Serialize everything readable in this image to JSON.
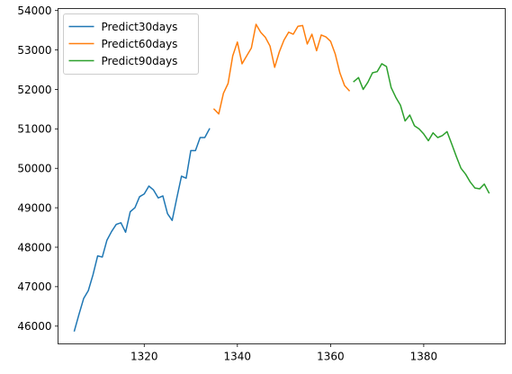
{
  "chart_data": {
    "type": "line",
    "title": "",
    "xlabel": "",
    "ylabel": "",
    "xlim": [
      1301.5,
      1397.5
    ],
    "ylim": [
      45550,
      54050
    ],
    "x_ticks": [
      1320,
      1340,
      1360,
      1380
    ],
    "y_ticks": [
      46000,
      47000,
      48000,
      49000,
      50000,
      51000,
      52000,
      53000,
      54000
    ],
    "grid": false,
    "legend_placement": "top-left",
    "series": [
      {
        "name": "Predict30days",
        "color": "#1f77b4",
        "x": [
          1305,
          1306,
          1307,
          1308,
          1309,
          1310,
          1311,
          1312,
          1313,
          1314,
          1315,
          1316,
          1317,
          1318,
          1319,
          1320,
          1321,
          1322,
          1323,
          1324,
          1325,
          1326,
          1327,
          1328,
          1329,
          1330,
          1331,
          1332,
          1333,
          1334
        ],
        "y": [
          45880,
          46300,
          46700,
          46900,
          47300,
          47780,
          47750,
          48180,
          48400,
          48580,
          48620,
          48380,
          48900,
          49000,
          49280,
          49350,
          49550,
          49450,
          49250,
          49300,
          48850,
          48680,
          49250,
          49800,
          49750,
          50450,
          50450,
          50780,
          50780,
          51000
        ]
      },
      {
        "name": "Predict60days",
        "color": "#ff7f0e",
        "x": [
          1335,
          1336,
          1337,
          1338,
          1339,
          1340,
          1341,
          1342,
          1343,
          1344,
          1345,
          1346,
          1347,
          1348,
          1349,
          1350,
          1351,
          1352,
          1353,
          1354,
          1355,
          1356,
          1357,
          1358,
          1359,
          1360,
          1361,
          1362,
          1363,
          1364
        ],
        "y": [
          51500,
          51380,
          51900,
          52150,
          52850,
          53200,
          52650,
          52850,
          53050,
          53650,
          53450,
          53320,
          53100,
          52560,
          52950,
          53250,
          53450,
          53400,
          53600,
          53620,
          53150,
          53400,
          52980,
          53380,
          53330,
          53220,
          52900,
          52420,
          52100,
          51970
        ]
      },
      {
        "name": "Predict90days",
        "color": "#2ca02c",
        "x": [
          1365,
          1366,
          1367,
          1368,
          1369,
          1370,
          1371,
          1372,
          1373,
          1374,
          1375,
          1376,
          1377,
          1378,
          1379,
          1380,
          1381,
          1382,
          1383,
          1384,
          1385,
          1386,
          1387,
          1388,
          1389,
          1390,
          1391,
          1392,
          1393,
          1394
        ],
        "y": [
          52200,
          52300,
          52000,
          52180,
          52420,
          52450,
          52650,
          52580,
          52050,
          51800,
          51600,
          51200,
          51350,
          51080,
          51000,
          50870,
          50700,
          50900,
          50780,
          50830,
          50930,
          50620,
          50300,
          50000,
          49850,
          49650,
          49500,
          49480,
          49600,
          49380
        ]
      }
    ]
  }
}
